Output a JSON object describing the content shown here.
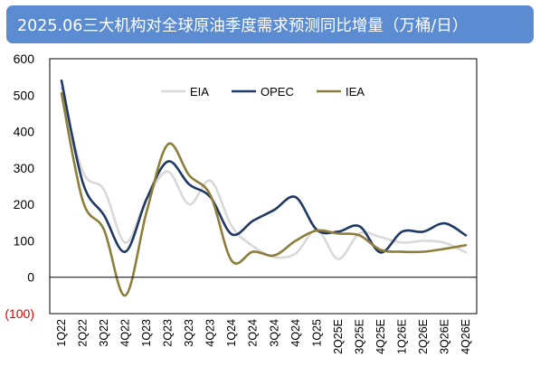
{
  "header": {
    "title": "2025.06三大机构对全球原油季度需求预测同比增量（万桶/日）"
  },
  "colors": {
    "title_bg": "#5b8bd0",
    "EIA": "#d9d9d9",
    "OPEC": "#1f3864",
    "IEA": "#8c7e3a"
  },
  "chart_data": {
    "type": "line",
    "title": "",
    "xlabel": "",
    "ylabel": "",
    "ylim": [
      -100,
      600
    ],
    "yticks": [
      -100,
      0,
      100,
      200,
      300,
      400,
      500,
      600
    ],
    "ytick_labels": [
      "(100)",
      "0",
      "100",
      "200",
      "300",
      "400",
      "500",
      "600"
    ],
    "grid": false,
    "legend_position": "top-center",
    "categories": [
      "1Q22",
      "2Q22",
      "3Q22",
      "4Q22",
      "1Q23",
      "2Q23",
      "3Q23",
      "4Q23",
      "1Q24",
      "2Q24",
      "3Q24",
      "4Q24",
      "1Q25",
      "2Q25E",
      "3Q25E",
      "4Q25E",
      "1Q26E",
      "2Q26E",
      "3Q26E",
      "4Q26E"
    ],
    "series": [
      {
        "name": "EIA",
        "color": "#d9d9d9",
        "values": [
          520,
          290,
          240,
          95,
          215,
          290,
          200,
          265,
          140,
          85,
          55,
          65,
          130,
          50,
          120,
          110,
          95,
          100,
          95,
          68
        ]
      },
      {
        "name": "OPEC",
        "color": "#1f3864",
        "values": [
          540,
          260,
          170,
          70,
          215,
          318,
          255,
          220,
          118,
          155,
          185,
          220,
          130,
          125,
          140,
          68,
          125,
          125,
          148,
          115
        ]
      },
      {
        "name": "IEA",
        "color": "#8c7e3a",
        "values": [
          505,
          210,
          130,
          -50,
          180,
          365,
          280,
          225,
          45,
          70,
          60,
          100,
          128,
          120,
          115,
          75,
          70,
          70,
          78,
          88
        ]
      }
    ]
  }
}
